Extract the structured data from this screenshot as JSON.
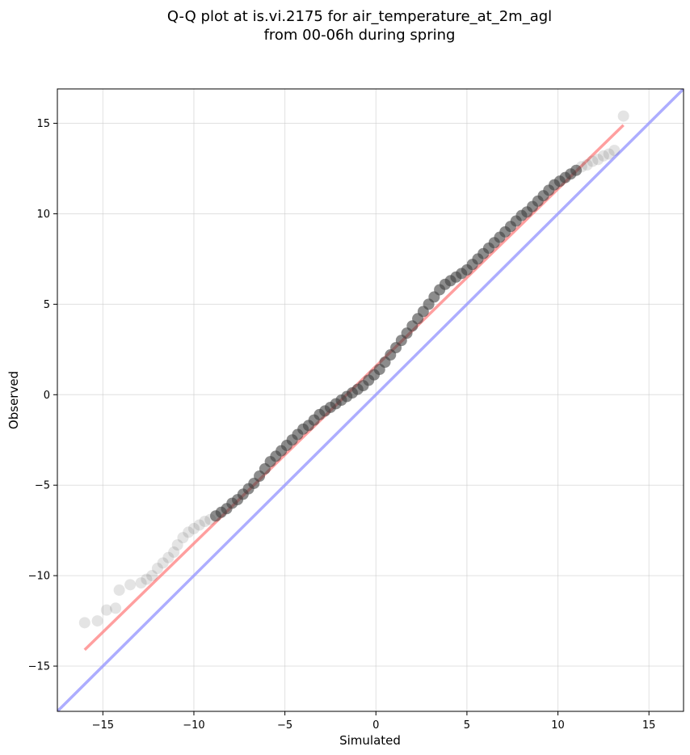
{
  "chart_data": {
    "type": "scatter",
    "title_line1": "Q-Q plot at is.vi.2175 for air_temperature_at_2m_agl",
    "title_line2": "from 00-06h during spring",
    "xlabel": "Simulated",
    "ylabel": "Observed",
    "xlim": [
      -17.5,
      16.9
    ],
    "ylim": [
      -17.5,
      16.9
    ],
    "xticks": [
      -15,
      -10,
      -5,
      0,
      5,
      10,
      15
    ],
    "yticks": [
      -15,
      -10,
      -5,
      0,
      5,
      10,
      15
    ],
    "xtick_labels": [
      "−15",
      "−10",
      "−5",
      "0",
      "5",
      "10",
      "15"
    ],
    "ytick_labels": [
      "−15",
      "−10",
      "−5",
      "0",
      "5",
      "10",
      "15"
    ],
    "grid": true,
    "points_color": "#404040",
    "fit_line": {
      "color": "#ff7f7f",
      "x": [
        -16.0,
        13.6
      ],
      "y": [
        -14.1,
        14.9
      ]
    },
    "identity_line": {
      "color": "#9999ff",
      "x": [
        -17.5,
        16.9
      ],
      "y": [
        -17.5,
        16.9
      ]
    },
    "points": {
      "x": [
        -16.0,
        -15.3,
        -14.8,
        -14.3,
        -14.1,
        -13.5,
        -12.9,
        -12.6,
        -12.3,
        -12.0,
        -11.7,
        -11.4,
        -11.1,
        -10.9,
        -10.6,
        -10.3,
        -10.0,
        -9.7,
        -9.4,
        -9.1,
        -8.8,
        -8.5,
        -8.2,
        -7.9,
        -7.6,
        -7.3,
        -7.0,
        -6.7,
        -6.4,
        -6.1,
        -5.8,
        -5.5,
        -5.2,
        -4.9,
        -4.6,
        -4.3,
        -4.0,
        -3.7,
        -3.4,
        -3.1,
        -2.8,
        -2.5,
        -2.2,
        -1.9,
        -1.6,
        -1.3,
        -1.0,
        -0.7,
        -0.4,
        -0.1,
        0.2,
        0.5,
        0.8,
        1.1,
        1.4,
        1.7,
        2.0,
        2.3,
        2.6,
        2.9,
        3.2,
        3.5,
        3.8,
        4.1,
        4.4,
        4.7,
        5.0,
        5.3,
        5.6,
        5.9,
        6.2,
        6.5,
        6.8,
        7.1,
        7.4,
        7.7,
        8.0,
        8.3,
        8.6,
        8.9,
        9.2,
        9.5,
        9.8,
        10.1,
        10.4,
        10.7,
        11.0,
        11.3,
        11.6,
        11.9,
        12.2,
        12.5,
        12.8,
        13.1,
        13.6
      ],
      "y": [
        -12.6,
        -12.5,
        -11.9,
        -11.8,
        -10.8,
        -10.5,
        -10.4,
        -10.2,
        -10.0,
        -9.6,
        -9.3,
        -9.0,
        -8.7,
        -8.3,
        -7.9,
        -7.6,
        -7.4,
        -7.2,
        -7.0,
        -6.9,
        -6.7,
        -6.5,
        -6.3,
        -6.0,
        -5.8,
        -5.5,
        -5.2,
        -4.9,
        -4.5,
        -4.1,
        -3.7,
        -3.4,
        -3.1,
        -2.8,
        -2.5,
        -2.2,
        -1.9,
        -1.7,
        -1.4,
        -1.1,
        -0.9,
        -0.7,
        -0.5,
        -0.3,
        -0.1,
        0.1,
        0.3,
        0.5,
        0.8,
        1.1,
        1.4,
        1.8,
        2.2,
        2.6,
        3.0,
        3.4,
        3.8,
        4.2,
        4.6,
        5.0,
        5.4,
        5.8,
        6.1,
        6.3,
        6.5,
        6.7,
        6.9,
        7.2,
        7.5,
        7.8,
        8.1,
        8.4,
        8.7,
        9.0,
        9.3,
        9.6,
        9.9,
        10.1,
        10.4,
        10.7,
        11.0,
        11.3,
        11.6,
        11.8,
        12.0,
        12.2,
        12.4,
        12.6,
        12.7,
        12.9,
        13.0,
        13.2,
        13.3,
        13.5,
        15.4
      ]
    }
  }
}
